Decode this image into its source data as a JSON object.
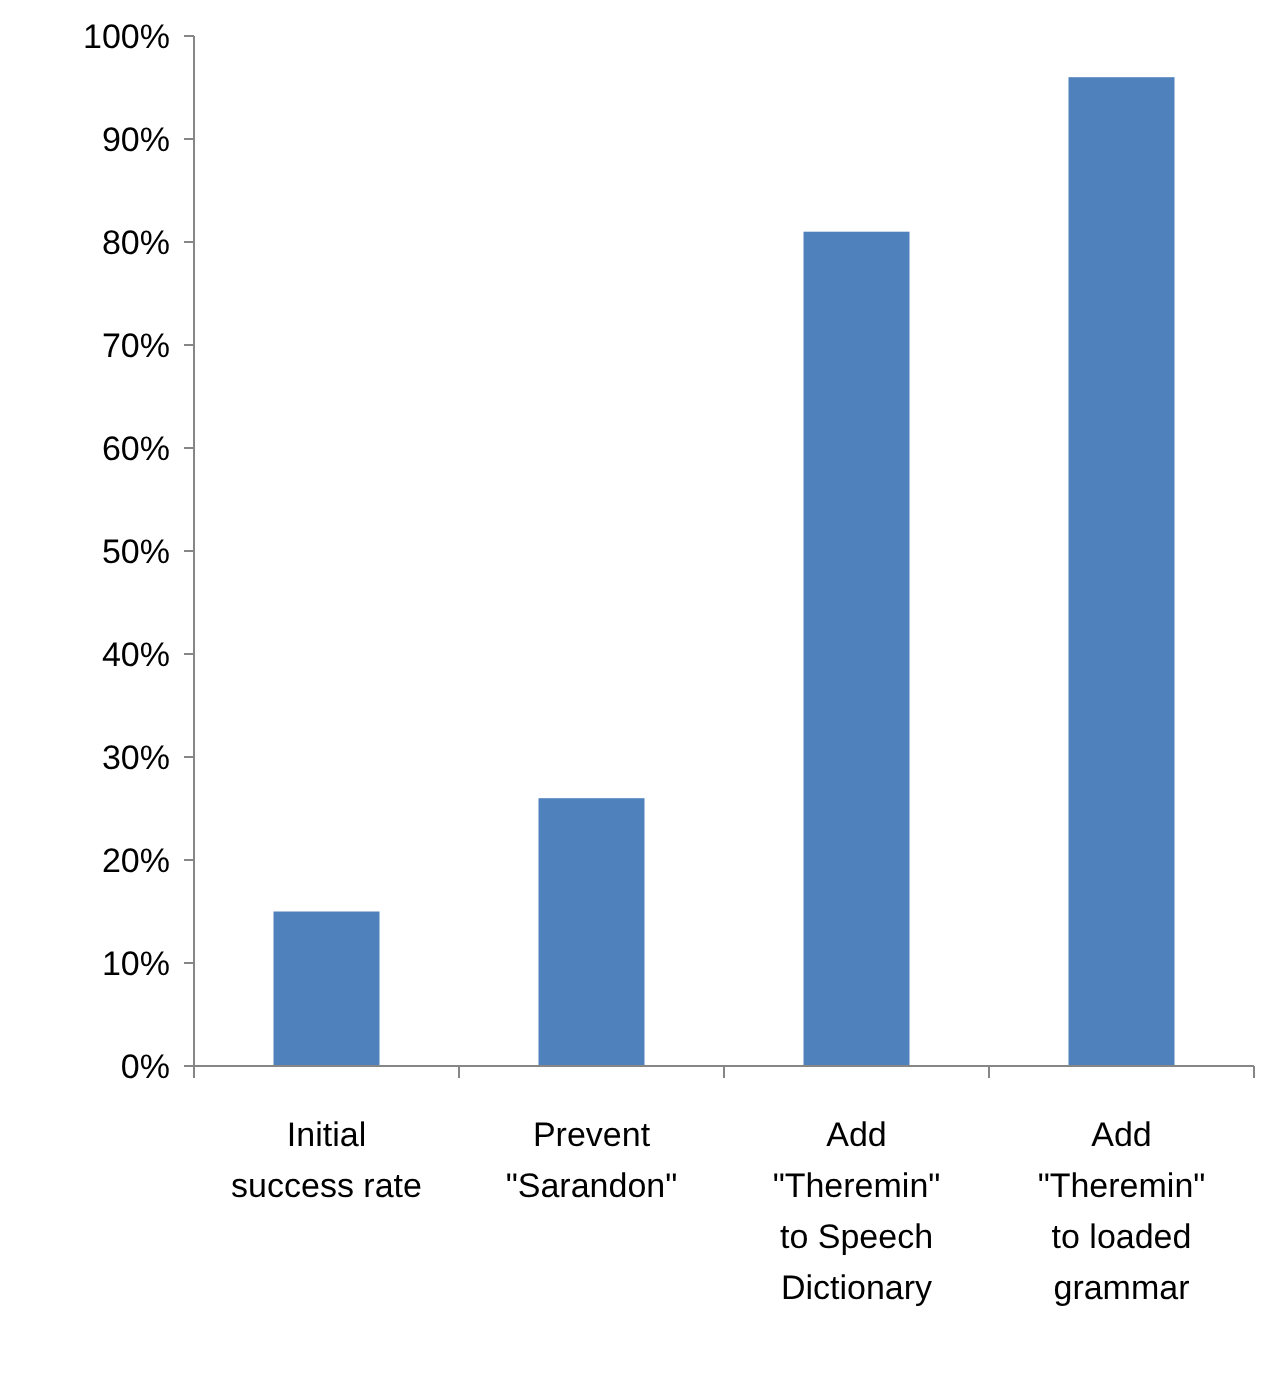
{
  "chart_data": {
    "type": "bar",
    "categories": [
      "Initial success rate",
      "Prevent \"Sarandon\"",
      "Add \"Theremin\" to Speech Dictionary",
      "Add \"Theremin\" to loaded grammar"
    ],
    "values": [
      15,
      26,
      81,
      96
    ],
    "color": "#4f81bd",
    "ylim": [
      0,
      100
    ],
    "yticks": [
      {
        "value": 0,
        "label": "0%"
      },
      {
        "value": 10,
        "label": "10%"
      },
      {
        "value": 20,
        "label": "20%"
      },
      {
        "value": 30,
        "label": "30%"
      },
      {
        "value": 40,
        "label": "40%"
      },
      {
        "value": 50,
        "label": "50%"
      },
      {
        "value": 60,
        "label": "60%"
      },
      {
        "value": 70,
        "label": "70%"
      },
      {
        "value": 80,
        "label": "80%"
      },
      {
        "value": 90,
        "label": "90%"
      },
      {
        "value": 100,
        "label": "100%"
      }
    ]
  }
}
